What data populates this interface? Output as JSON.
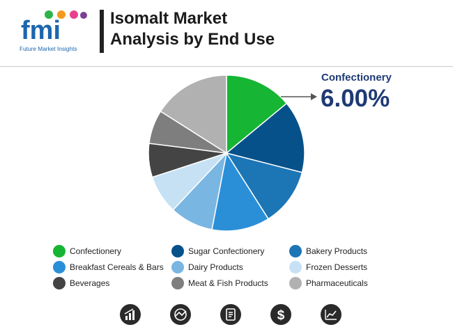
{
  "header": {
    "logo_text": "fmi",
    "logo_subtitle": "Future Market Insights",
    "title_line1": "Isomalt Market",
    "title_line2": "Analysis by End Use"
  },
  "callout": {
    "label": "Confectionery",
    "value": "6.00%"
  },
  "chart_data": {
    "type": "pie",
    "title": "",
    "categories": [
      "Confectionery",
      "Sugar Confectionery",
      "Bakery Products",
      "Breakfast Cereals & Bars",
      "Dairy Products",
      "Frozen Desserts",
      "Beverages",
      "Meat & Fish Products",
      "Pharmaceuticals"
    ],
    "values": [
      14,
      15,
      12,
      12,
      9,
      8,
      7,
      7,
      16
    ],
    "colors": [
      "#16b534",
      "#07518b",
      "#1c75b5",
      "#2b8fd8",
      "#7ab6e2",
      "#c6e1f4",
      "#444444",
      "#7e7e7e",
      "#b1b1b1"
    ],
    "highlight": {
      "category": "Confectionery",
      "label": "6.00%"
    },
    "legend": "bottom"
  },
  "footer_icons": [
    "bar-chart-icon",
    "globe-chart-icon",
    "report-icon",
    "dollar-icon",
    "line-chart-icon"
  ]
}
